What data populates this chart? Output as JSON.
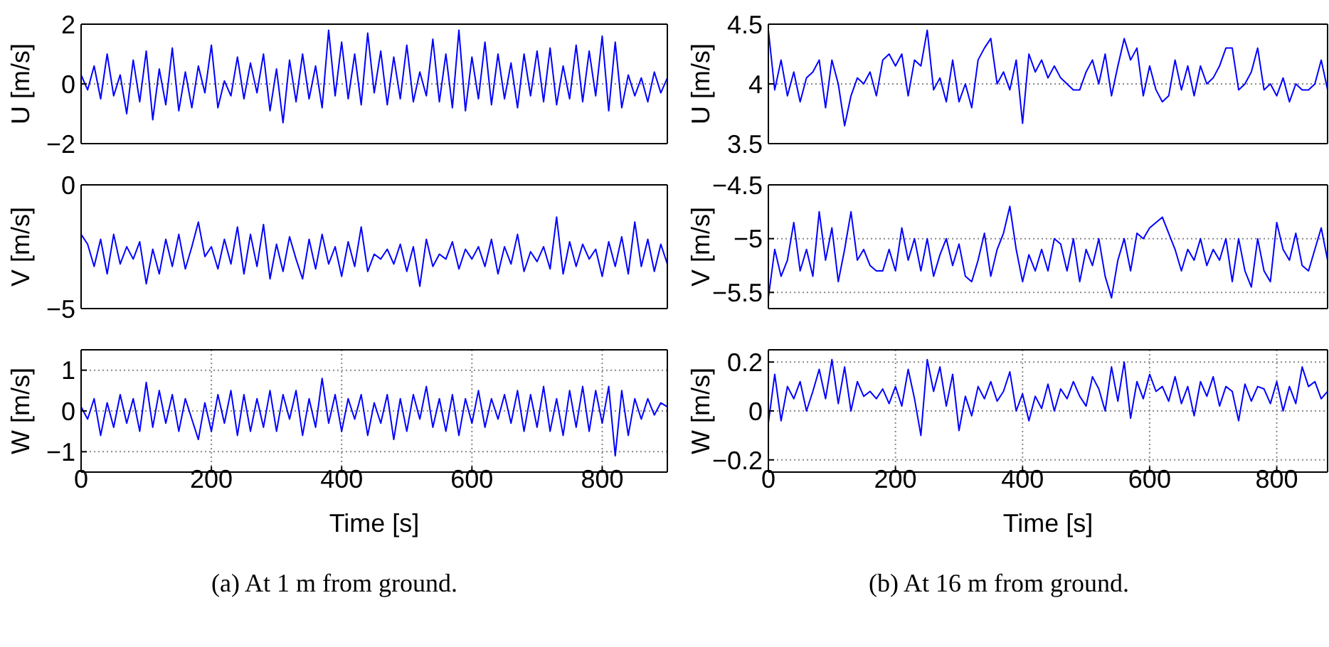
{
  "chart_data": [
    {
      "type": "line",
      "ylabel": "U [m/s]",
      "x": [
        0,
        10,
        20,
        30,
        40,
        50,
        60,
        70,
        80,
        90,
        100,
        110,
        120,
        130,
        140,
        150,
        160,
        170,
        180,
        190,
        200,
        210,
        220,
        230,
        240,
        250,
        260,
        270,
        280,
        290,
        300,
        310,
        320,
        330,
        340,
        350,
        360,
        370,
        380,
        390,
        400,
        410,
        420,
        430,
        440,
        450,
        460,
        470,
        480,
        490,
        500,
        510,
        520,
        530,
        540,
        550,
        560,
        570,
        580,
        590,
        600,
        610,
        620,
        630,
        640,
        650,
        660,
        670,
        680,
        690,
        700,
        710,
        720,
        730,
        740,
        750,
        760,
        770,
        780,
        790,
        800,
        810,
        820,
        830,
        840,
        850,
        860,
        870,
        880,
        890,
        900
      ],
      "xlim": [
        0,
        900
      ],
      "xticks": [
        0,
        200,
        400,
        600,
        800
      ],
      "ylim": [
        -2,
        2
      ],
      "yticks": [
        -2,
        0,
        2
      ],
      "grid": true,
      "tick_labels": "y",
      "series": [
        {
          "color": "#0000ff",
          "values": [
            0.3,
            -0.2,
            0.6,
            -0.5,
            1.0,
            -0.4,
            0.3,
            -1.0,
            0.8,
            -0.6,
            1.1,
            -1.2,
            0.5,
            -0.7,
            1.2,
            -0.9,
            0.4,
            -0.8,
            0.6,
            -0.3,
            1.3,
            -0.8,
            0.1,
            -0.4,
            0.9,
            -0.5,
            0.7,
            -0.3,
            1.0,
            -0.9,
            0.5,
            -1.3,
            0.8,
            -0.6,
            1.0,
            -0.5,
            0.6,
            -0.8,
            1.8,
            -0.4,
            1.4,
            -0.5,
            1.0,
            -0.7,
            1.7,
            -0.3,
            1.1,
            -0.7,
            0.9,
            -0.5,
            1.3,
            -0.6,
            0.4,
            -0.4,
            1.5,
            -0.6,
            1.0,
            -0.8,
            1.8,
            -0.9,
            0.9,
            -0.5,
            1.4,
            -0.7,
            1.0,
            -0.5,
            0.7,
            -0.8,
            1.0,
            -0.4,
            1.1,
            -0.6,
            1.2,
            -0.7,
            0.6,
            -0.5,
            1.3,
            -0.6,
            1.1,
            -0.4,
            1.6,
            -0.9,
            1.4,
            -0.8,
            0.3,
            -0.4,
            0.2,
            -0.6,
            0.4,
            -0.3,
            0.2
          ]
        }
      ]
    },
    {
      "type": "line",
      "ylabel": "U [m/s]",
      "x": [
        0,
        10,
        20,
        30,
        40,
        50,
        60,
        70,
        80,
        90,
        100,
        110,
        120,
        130,
        140,
        150,
        160,
        170,
        180,
        190,
        200,
        210,
        220,
        230,
        240,
        250,
        260,
        270,
        280,
        290,
        300,
        310,
        320,
        330,
        340,
        350,
        360,
        370,
        380,
        390,
        400,
        410,
        420,
        430,
        440,
        450,
        460,
        470,
        480,
        490,
        500,
        510,
        520,
        530,
        540,
        550,
        560,
        570,
        580,
        590,
        600,
        610,
        620,
        630,
        640,
        650,
        660,
        670,
        680,
        690,
        700,
        710,
        720,
        730,
        740,
        750,
        760,
        770,
        780,
        790,
        800,
        810,
        820,
        830,
        840,
        850,
        860,
        870,
        880
      ],
      "xlim": [
        0,
        880
      ],
      "xticks": [
        0,
        200,
        400,
        600,
        800
      ],
      "ylim": [
        3.5,
        4.5
      ],
      "yticks": [
        3.5,
        4,
        4.5
      ],
      "grid": true,
      "tick_labels": "y",
      "series": [
        {
          "color": "#0000ff",
          "values": [
            4.45,
            3.95,
            4.2,
            3.9,
            4.1,
            3.85,
            4.05,
            4.1,
            4.2,
            3.8,
            4.2,
            4.0,
            3.65,
            3.9,
            4.05,
            4.0,
            4.1,
            3.9,
            4.2,
            4.25,
            4.15,
            4.25,
            3.9,
            4.2,
            4.15,
            4.45,
            3.95,
            4.05,
            3.85,
            4.2,
            3.85,
            4.0,
            3.8,
            4.2,
            4.3,
            4.38,
            4.0,
            4.1,
            3.95,
            4.2,
            3.67,
            4.25,
            4.1,
            4.2,
            4.05,
            4.15,
            4.05,
            4.0,
            3.95,
            3.95,
            4.1,
            4.2,
            4.0,
            4.25,
            3.9,
            4.15,
            4.38,
            4.2,
            4.3,
            3.9,
            4.15,
            3.95,
            3.85,
            3.9,
            4.2,
            3.95,
            4.15,
            3.9,
            4.15,
            4.0,
            4.05,
            4.15,
            4.3,
            4.3,
            3.95,
            4.0,
            4.1,
            4.3,
            3.95,
            4.0,
            3.9,
            4.05,
            3.85,
            4.0,
            3.95,
            3.95,
            4.0,
            4.2,
            3.95
          ]
        }
      ]
    },
    {
      "type": "line",
      "ylabel": "V [m/s]",
      "x": [
        0,
        10,
        20,
        30,
        40,
        50,
        60,
        70,
        80,
        90,
        100,
        110,
        120,
        130,
        140,
        150,
        160,
        170,
        180,
        190,
        200,
        210,
        220,
        230,
        240,
        250,
        260,
        270,
        280,
        290,
        300,
        310,
        320,
        330,
        340,
        350,
        360,
        370,
        380,
        390,
        400,
        410,
        420,
        430,
        440,
        450,
        460,
        470,
        480,
        490,
        500,
        510,
        520,
        530,
        540,
        550,
        560,
        570,
        580,
        590,
        600,
        610,
        620,
        630,
        640,
        650,
        660,
        670,
        680,
        690,
        700,
        710,
        720,
        730,
        740,
        750,
        760,
        770,
        780,
        790,
        800,
        810,
        820,
        830,
        840,
        850,
        860,
        870,
        880,
        890,
        900
      ],
      "xlim": [
        0,
        900
      ],
      "xticks": [
        0,
        200,
        400,
        600,
        800
      ],
      "ylim": [
        -5,
        0
      ],
      "yticks": [
        -5,
        0
      ],
      "grid": true,
      "tick_labels": "y",
      "series": [
        {
          "color": "#0000ff",
          "values": [
            -2.0,
            -2.4,
            -3.3,
            -2.2,
            -3.6,
            -2.0,
            -3.2,
            -2.5,
            -3.0,
            -2.3,
            -4.0,
            -2.6,
            -3.6,
            -2.2,
            -3.3,
            -2.0,
            -3.4,
            -2.5,
            -1.5,
            -2.9,
            -2.5,
            -3.4,
            -2.2,
            -3.2,
            -1.7,
            -3.6,
            -2.0,
            -3.3,
            -1.6,
            -3.8,
            -2.4,
            -3.5,
            -2.1,
            -3.0,
            -3.8,
            -2.2,
            -3.4,
            -2.0,
            -3.2,
            -2.5,
            -3.7,
            -2.3,
            -3.3,
            -1.7,
            -3.5,
            -2.8,
            -3.0,
            -2.6,
            -3.2,
            -2.4,
            -3.5,
            -2.5,
            -4.1,
            -2.2,
            -3.3,
            -2.8,
            -3.0,
            -2.3,
            -3.4,
            -2.6,
            -3.0,
            -2.5,
            -3.3,
            -2.2,
            -3.6,
            -2.5,
            -3.2,
            -2.0,
            -3.5,
            -2.7,
            -3.1,
            -2.5,
            -3.4,
            -1.3,
            -3.6,
            -2.3,
            -3.3,
            -2.4,
            -3.0,
            -2.6,
            -3.7,
            -2.3,
            -3.3,
            -2.1,
            -3.6,
            -1.5,
            -3.3,
            -2.2,
            -3.5,
            -2.4,
            -3.2
          ]
        }
      ]
    },
    {
      "type": "line",
      "ylabel": "V [m/s]",
      "x": [
        0,
        10,
        20,
        30,
        40,
        50,
        60,
        70,
        80,
        90,
        100,
        110,
        120,
        130,
        140,
        150,
        160,
        170,
        180,
        190,
        200,
        210,
        220,
        230,
        240,
        250,
        260,
        270,
        280,
        290,
        300,
        310,
        320,
        330,
        340,
        350,
        360,
        370,
        380,
        390,
        400,
        410,
        420,
        430,
        440,
        450,
        460,
        470,
        480,
        490,
        500,
        510,
        520,
        530,
        540,
        550,
        560,
        570,
        580,
        590,
        600,
        610,
        620,
        630,
        640,
        650,
        660,
        670,
        680,
        690,
        700,
        710,
        720,
        730,
        740,
        750,
        760,
        770,
        780,
        790,
        800,
        810,
        820,
        830,
        840,
        850,
        860,
        870,
        880
      ],
      "xlim": [
        0,
        880
      ],
      "xticks": [
        0,
        200,
        400,
        600,
        800
      ],
      "ylim": [
        -5.65,
        -4.5
      ],
      "yticks": [
        -5.5,
        -5,
        -4.5
      ],
      "grid": true,
      "tick_labels": "y",
      "series": [
        {
          "color": "#0000ff",
          "values": [
            -5.55,
            -5.1,
            -5.35,
            -5.2,
            -4.85,
            -5.3,
            -5.1,
            -5.35,
            -4.75,
            -5.2,
            -4.9,
            -5.4,
            -5.1,
            -4.75,
            -5.2,
            -5.1,
            -5.25,
            -5.3,
            -5.3,
            -5.1,
            -5.3,
            -4.9,
            -5.2,
            -5.0,
            -5.3,
            -5.0,
            -5.35,
            -5.15,
            -5.0,
            -5.25,
            -5.05,
            -5.35,
            -5.4,
            -5.2,
            -4.95,
            -5.35,
            -5.1,
            -4.95,
            -4.7,
            -5.1,
            -5.4,
            -5.15,
            -5.3,
            -5.1,
            -5.3,
            -5.0,
            -5.05,
            -5.3,
            -5.0,
            -5.4,
            -5.1,
            -5.25,
            -5.0,
            -5.35,
            -5.55,
            -5.2,
            -5.0,
            -5.3,
            -4.95,
            -5.0,
            -4.9,
            -4.85,
            -4.8,
            -4.95,
            -5.1,
            -5.3,
            -5.1,
            -5.2,
            -5.0,
            -5.25,
            -5.1,
            -5.2,
            -5.0,
            -5.4,
            -5.0,
            -5.3,
            -5.45,
            -5.0,
            -5.3,
            -5.4,
            -4.85,
            -5.1,
            -5.2,
            -4.95,
            -5.25,
            -5.3,
            -5.1,
            -4.9,
            -5.2
          ]
        }
      ]
    },
    {
      "type": "line",
      "ylabel": "W [m/s]",
      "xlabel": "Time [s]",
      "x": [
        0,
        10,
        20,
        30,
        40,
        50,
        60,
        70,
        80,
        90,
        100,
        110,
        120,
        130,
        140,
        150,
        160,
        170,
        180,
        190,
        200,
        210,
        220,
        230,
        240,
        250,
        260,
        270,
        280,
        290,
        300,
        310,
        320,
        330,
        340,
        350,
        360,
        370,
        380,
        390,
        400,
        410,
        420,
        430,
        440,
        450,
        460,
        470,
        480,
        490,
        500,
        510,
        520,
        530,
        540,
        550,
        560,
        570,
        580,
        590,
        600,
        610,
        620,
        630,
        640,
        650,
        660,
        670,
        680,
        690,
        700,
        710,
        720,
        730,
        740,
        750,
        760,
        770,
        780,
        790,
        800,
        810,
        820,
        830,
        840,
        850,
        860,
        870,
        880,
        890,
        900
      ],
      "xlim": [
        0,
        900
      ],
      "xticks": [
        0,
        200,
        400,
        600,
        800
      ],
      "ylim": [
        -1.5,
        1.5
      ],
      "yticks": [
        -1,
        0,
        1
      ],
      "grid": true,
      "annotations": [
        "(a) At 1 m from ground."
      ],
      "series": [
        {
          "color": "#0000ff",
          "values": [
            0.1,
            -0.2,
            0.3,
            -0.6,
            0.2,
            -0.4,
            0.4,
            -0.3,
            0.3,
            -0.5,
            0.7,
            -0.4,
            0.5,
            -0.3,
            0.4,
            -0.5,
            0.3,
            -0.2,
            -0.7,
            0.2,
            -0.5,
            0.4,
            -0.3,
            0.5,
            -0.6,
            0.4,
            -0.5,
            0.3,
            -0.4,
            0.5,
            -0.5,
            0.4,
            -0.2,
            0.5,
            -0.6,
            0.3,
            -0.4,
            0.8,
            -0.3,
            0.4,
            -0.5,
            0.3,
            -0.2,
            0.4,
            -0.6,
            0.2,
            -0.3,
            0.4,
            -0.7,
            0.3,
            -0.5,
            0.4,
            -0.2,
            0.6,
            -0.4,
            0.3,
            -0.5,
            0.4,
            -0.6,
            0.3,
            -0.3,
            0.5,
            -0.4,
            0.3,
            -0.2,
            0.4,
            -0.3,
            0.5,
            -0.5,
            0.4,
            -0.4,
            0.6,
            -0.5,
            0.3,
            -0.6,
            0.5,
            -0.4,
            0.6,
            -0.5,
            0.5,
            -0.3,
            0.6,
            -1.1,
            0.5,
            -0.6,
            0.3,
            -0.2,
            0.3,
            -0.1,
            0.2,
            0.1
          ]
        }
      ]
    },
    {
      "type": "line",
      "ylabel": "W [m/s]",
      "xlabel": "Time [s]",
      "x": [
        0,
        10,
        20,
        30,
        40,
        50,
        60,
        70,
        80,
        90,
        100,
        110,
        120,
        130,
        140,
        150,
        160,
        170,
        180,
        190,
        200,
        210,
        220,
        230,
        240,
        250,
        260,
        270,
        280,
        290,
        300,
        310,
        320,
        330,
        340,
        350,
        360,
        370,
        380,
        390,
        400,
        410,
        420,
        430,
        440,
        450,
        460,
        470,
        480,
        490,
        500,
        510,
        520,
        530,
        540,
        550,
        560,
        570,
        580,
        590,
        600,
        610,
        620,
        630,
        640,
        650,
        660,
        670,
        680,
        690,
        700,
        710,
        720,
        730,
        740,
        750,
        760,
        770,
        780,
        790,
        800,
        810,
        820,
        830,
        840,
        850,
        860,
        870,
        880
      ],
      "xlim": [
        0,
        880
      ],
      "xticks": [
        0,
        200,
        400,
        600,
        800
      ],
      "ylim": [
        -0.25,
        0.25
      ],
      "yticks": [
        -0.2,
        0,
        0.2
      ],
      "grid": true,
      "annotations": [
        "(b) At 16 m from ground."
      ],
      "series": [
        {
          "color": "#0000ff",
          "values": [
            -0.05,
            0.15,
            -0.04,
            0.1,
            0.05,
            0.12,
            0.0,
            0.08,
            0.17,
            0.05,
            0.21,
            0.03,
            0.18,
            0.0,
            0.12,
            0.06,
            0.08,
            0.05,
            0.09,
            0.03,
            0.1,
            0.02,
            0.17,
            0.05,
            -0.1,
            0.21,
            0.08,
            0.18,
            0.02,
            0.15,
            -0.08,
            0.06,
            -0.02,
            0.1,
            0.05,
            0.12,
            0.04,
            0.08,
            0.16,
            0.0,
            0.07,
            -0.04,
            0.06,
            0.01,
            0.11,
            0.0,
            0.09,
            0.05,
            0.12,
            0.06,
            0.02,
            0.14,
            0.09,
            0.0,
            0.18,
            0.04,
            0.2,
            -0.03,
            0.12,
            0.05,
            0.15,
            0.08,
            0.1,
            0.04,
            0.14,
            0.03,
            0.1,
            -0.02,
            0.12,
            0.06,
            0.14,
            0.02,
            0.1,
            0.08,
            -0.04,
            0.11,
            0.04,
            0.1,
            0.09,
            0.03,
            0.12,
            0.0,
            0.1,
            0.03,
            0.18,
            0.1,
            0.12,
            0.05,
            0.08
          ]
        }
      ]
    }
  ]
}
